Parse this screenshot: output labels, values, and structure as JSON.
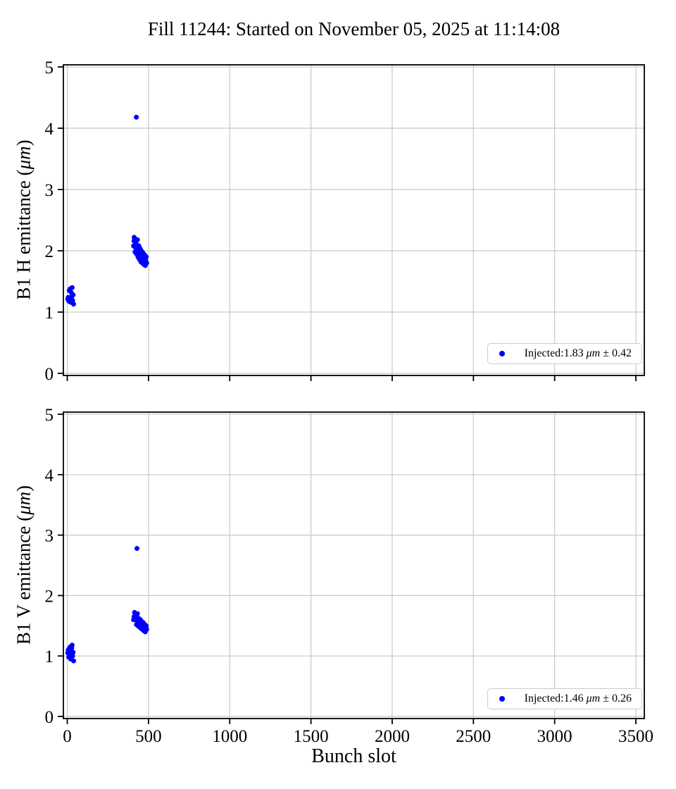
{
  "title": "Fill 11244: Started on November 05, 2025 at 11:14:08",
  "xlabel": "Bunch slot",
  "colors": {
    "points": "#0000ff",
    "grid": "#c8c8c8",
    "spine": "#000000",
    "legend_border": "#cccccc",
    "background": "#ffffff"
  },
  "chart_data": [
    {
      "type": "scatter",
      "ylabel": "B1 H emittance (μm)",
      "ylabel_parts": {
        "pre": "B1 H emittance (",
        "unit": "μm",
        "post": ")"
      },
      "legend": "Injected:1.83 μm ± 0.42",
      "legend_parts": {
        "pre": "Injected:1.83 ",
        "unit": "μm",
        "post": " ± 0.42"
      },
      "legend_position": "lower right",
      "xlabel": "Bunch slot",
      "xlim": [
        -24,
        3552
      ],
      "ylim": [
        0,
        5
      ],
      "xticks": [
        0,
        500,
        1000,
        1500,
        2000,
        2500,
        3000,
        3500
      ],
      "yticks": [
        0,
        1,
        2,
        3,
        4,
        5
      ],
      "grid": true,
      "series": [
        {
          "name": "Injected",
          "color": "#0000ff",
          "points": [
            [
              3,
              1.21
            ],
            [
              6,
              1.24
            ],
            [
              9,
              1.18
            ],
            [
              12,
              1.35
            ],
            [
              15,
              1.22
            ],
            [
              18,
              1.38
            ],
            [
              21,
              1.16
            ],
            [
              24,
              1.32
            ],
            [
              27,
              1.25
            ],
            [
              30,
              1.4
            ],
            [
              33,
              1.19
            ],
            [
              36,
              1.28
            ],
            [
              39,
              1.13
            ],
            [
              408,
              2.08
            ],
            [
              411,
              2.16
            ],
            [
              412,
              2.22
            ],
            [
              414,
              2.2
            ],
            [
              417,
              1.98
            ],
            [
              418,
              2.14
            ],
            [
              420,
              2.05
            ],
            [
              423,
              2.12
            ],
            [
              425,
              4.18
            ],
            [
              426,
              1.95
            ],
            [
              429,
              2.02
            ],
            [
              432,
              2.18
            ],
            [
              435,
              1.9
            ],
            [
              438,
              2.0
            ],
            [
              441,
              2.08
            ],
            [
              444,
              1.86
            ],
            [
              447,
              1.95
            ],
            [
              450,
              2.03
            ],
            [
              453,
              1.82
            ],
            [
              456,
              1.92
            ],
            [
              459,
              1.99
            ],
            [
              462,
              1.8
            ],
            [
              465,
              1.88
            ],
            [
              468,
              1.96
            ],
            [
              471,
              1.78
            ],
            [
              474,
              1.86
            ],
            [
              477,
              1.93
            ],
            [
              480,
              1.76
            ],
            [
              483,
              1.84
            ],
            [
              486,
              1.9
            ],
            [
              489,
              1.8
            ]
          ]
        }
      ]
    },
    {
      "type": "scatter",
      "ylabel": "B1 V emittance (μm)",
      "ylabel_parts": {
        "pre": "B1 V emittance (",
        "unit": "μm",
        "post": ")"
      },
      "legend": "Injected:1.46 μm ± 0.26",
      "legend_parts": {
        "pre": "Injected:1.46 ",
        "unit": "μm",
        "post": " ± 0.26"
      },
      "legend_position": "lower right",
      "xlabel": "Bunch slot",
      "xlim": [
        -24,
        3552
      ],
      "ylim": [
        0,
        5
      ],
      "xticks": [
        0,
        500,
        1000,
        1500,
        2000,
        2500,
        3000,
        3500
      ],
      "yticks": [
        0,
        1,
        2,
        3,
        4,
        5
      ],
      "grid": true,
      "series": [
        {
          "name": "Injected",
          "color": "#0000ff",
          "points": [
            [
              3,
              1.05
            ],
            [
              6,
              1.1
            ],
            [
              9,
              0.98
            ],
            [
              12,
              1.12
            ],
            [
              15,
              1.02
            ],
            [
              18,
              1.15
            ],
            [
              21,
              0.95
            ],
            [
              24,
              1.08
            ],
            [
              27,
              1.13
            ],
            [
              30,
              1.18
            ],
            [
              33,
              1.0
            ],
            [
              36,
              1.06
            ],
            [
              39,
              0.92
            ],
            [
              408,
              1.6
            ],
            [
              411,
              1.65
            ],
            [
              414,
              1.72
            ],
            [
              417,
              1.68
            ],
            [
              420,
              1.62
            ],
            [
              423,
              1.66
            ],
            [
              426,
              1.52
            ],
            [
              429,
              2.78
            ],
            [
              429,
              1.58
            ],
            [
              432,
              1.7
            ],
            [
              435,
              1.5
            ],
            [
              438,
              1.56
            ],
            [
              441,
              1.62
            ],
            [
              444,
              1.48
            ],
            [
              447,
              1.54
            ],
            [
              450,
              1.6
            ],
            [
              453,
              1.46
            ],
            [
              456,
              1.52
            ],
            [
              459,
              1.57
            ],
            [
              462,
              1.44
            ],
            [
              465,
              1.5
            ],
            [
              468,
              1.55
            ],
            [
              471,
              1.42
            ],
            [
              474,
              1.48
            ],
            [
              477,
              1.52
            ],
            [
              480,
              1.4
            ],
            [
              483,
              1.46
            ],
            [
              486,
              1.5
            ],
            [
              489,
              1.44
            ]
          ]
        }
      ]
    }
  ]
}
